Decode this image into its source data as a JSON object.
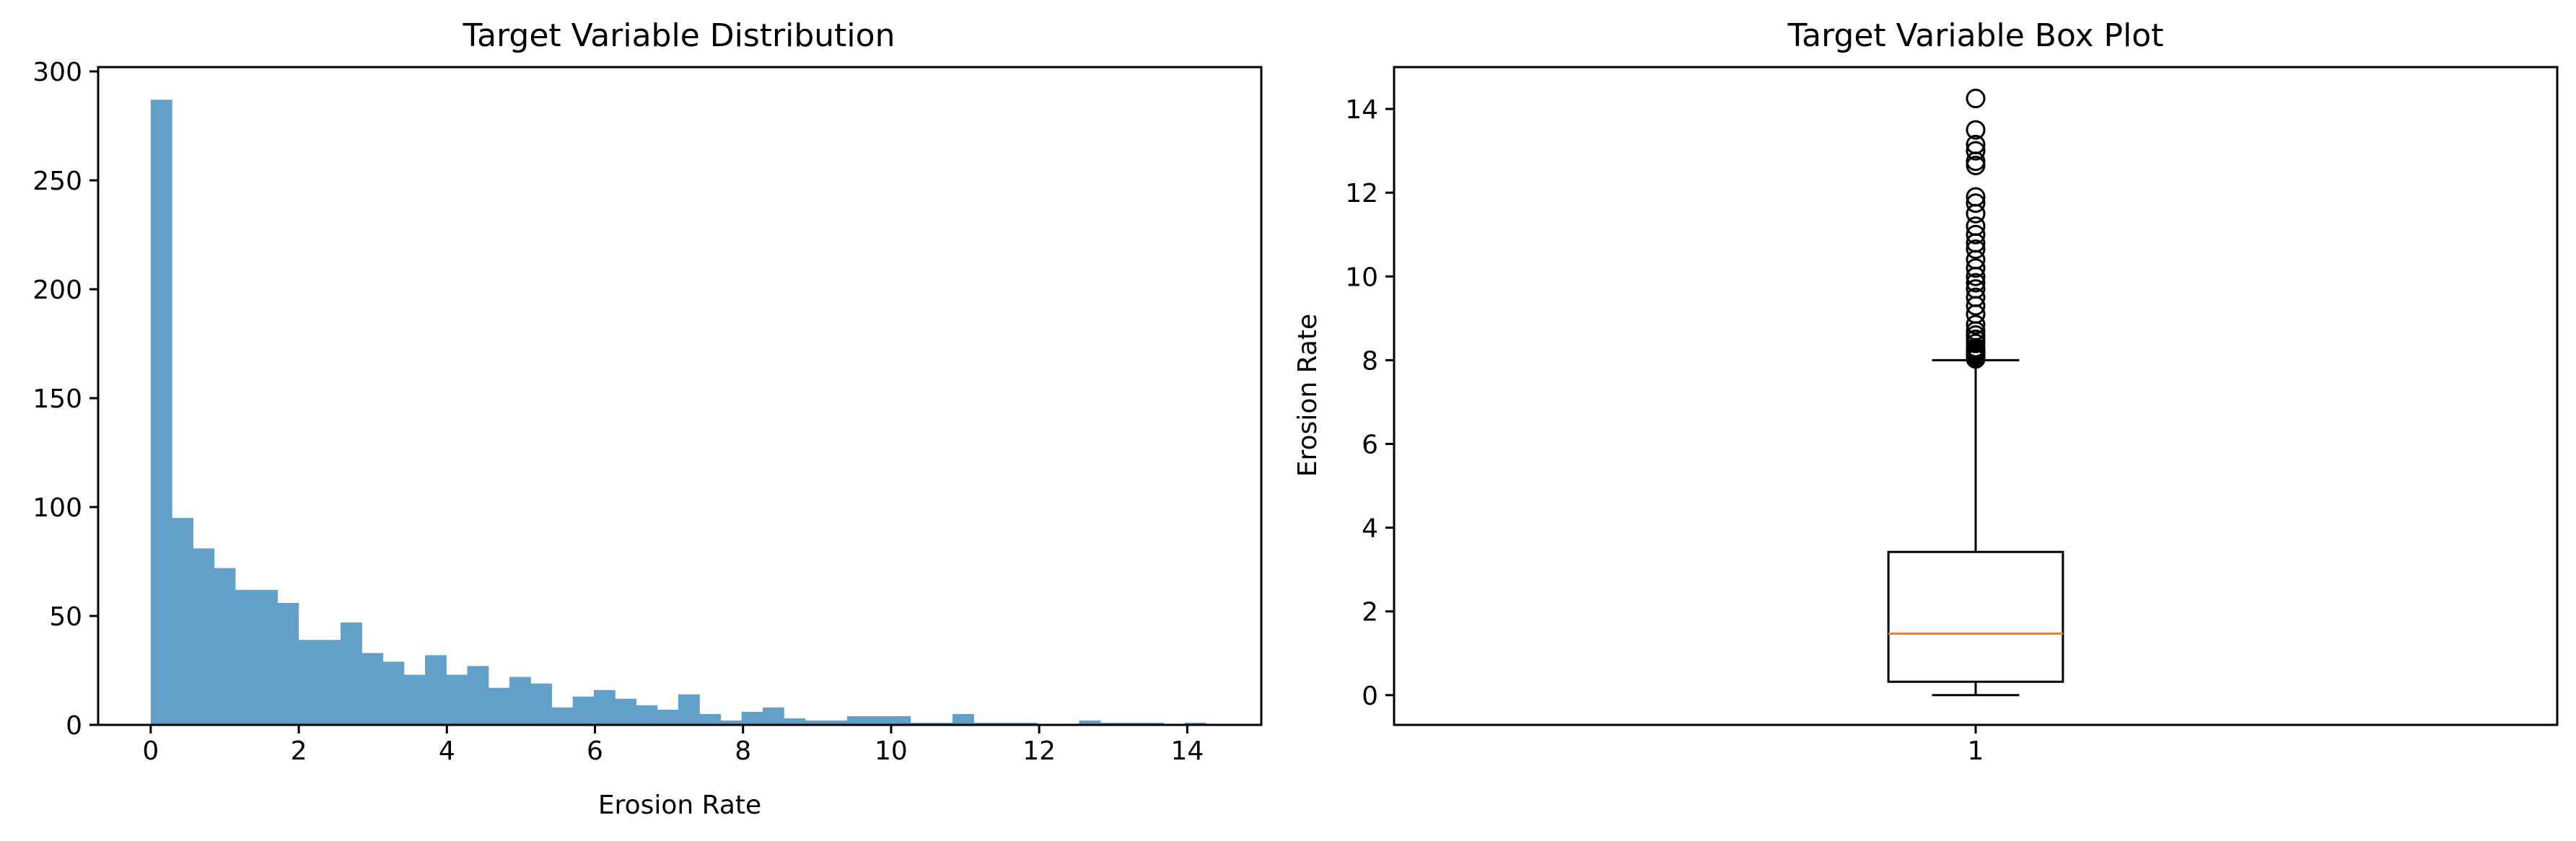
{
  "chart_data": [
    {
      "type": "bar",
      "subtype": "histogram",
      "title": "Target Variable Distribution",
      "xlabel": "Erosion Rate",
      "ylabel": "",
      "xlim": [
        -0.71,
        15.0
      ],
      "ylim": [
        0,
        302
      ],
      "xticks": [
        0,
        2,
        4,
        6,
        8,
        10,
        12,
        14
      ],
      "yticks": [
        0,
        50,
        100,
        150,
        200,
        250,
        300
      ],
      "bin_start": 0,
      "bin_width": 0.285,
      "values": [
        287,
        95,
        81,
        72,
        62,
        62,
        56,
        39,
        39,
        47,
        33,
        29,
        23,
        32,
        23,
        27,
        17,
        22,
        19,
        8,
        13,
        16,
        12,
        9,
        7,
        14,
        5,
        2,
        6,
        8,
        3,
        2,
        2,
        4,
        4,
        4,
        1,
        1,
        5,
        1,
        1,
        1,
        0,
        0,
        2,
        1,
        1,
        1,
        0,
        1
      ],
      "color": "#62a0ca",
      "grid": false
    },
    {
      "type": "box",
      "title": "Target Variable Box Plot",
      "xlabel": "",
      "ylabel": "Erosion Rate",
      "xlim": [
        0.5,
        1.5
      ],
      "ylim": [
        -0.71,
        15.0
      ],
      "categories": [
        "1"
      ],
      "yticks": [
        0,
        2,
        4,
        6,
        8,
        10,
        12,
        14
      ],
      "box": {
        "whisker_low": 0.0,
        "q1": 0.32,
        "median": 1.47,
        "q3": 3.42,
        "whisker_high": 8.0
      },
      "outliers": [
        8.03,
        8.06,
        8.1,
        8.15,
        8.2,
        8.25,
        8.3,
        8.4,
        8.5,
        8.6,
        8.7,
        8.85,
        9.1,
        9.3,
        9.5,
        9.7,
        9.85,
        10.0,
        10.2,
        10.4,
        10.65,
        10.8,
        11.0,
        11.2,
        11.5,
        11.75,
        11.9,
        12.65,
        12.75,
        13.0,
        13.15,
        13.5,
        14.25
      ],
      "box_color": "#000000",
      "median_color": "#ff7f0e",
      "grid": false
    }
  ]
}
